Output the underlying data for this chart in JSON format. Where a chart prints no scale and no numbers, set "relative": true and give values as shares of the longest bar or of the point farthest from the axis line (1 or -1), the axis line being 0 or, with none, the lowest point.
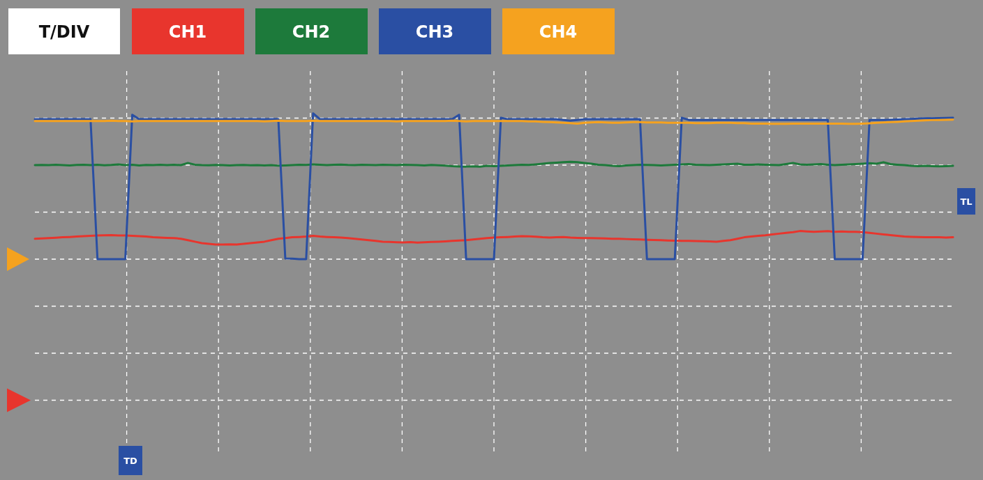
{
  "chart_data": {
    "type": "line",
    "relative": true,
    "grid": true,
    "legend": "top left",
    "annotations": [
      "T/DIV",
      "TL",
      "TD"
    ],
    "categories": [
      null,
      null,
      null,
      null,
      null,
      null,
      null,
      null,
      null,
      null,
      null,
      null,
      null,
      null,
      null,
      null,
      null,
      null,
      null,
      null,
      null,
      null,
      null,
      null,
      null,
      null,
      null,
      null,
      null,
      null,
      null,
      null,
      null,
      null,
      null,
      null,
      null,
      null,
      null,
      null,
      null,
      null,
      null,
      null,
      null,
      null,
      null,
      null,
      null,
      null,
      null,
      null,
      null,
      null,
      null,
      null,
      null,
      null,
      null,
      null,
      null,
      null,
      null,
      null,
      null,
      null,
      null,
      null,
      null,
      null,
      null,
      null,
      null,
      null,
      null,
      null,
      null,
      null,
      null,
      null,
      null,
      null,
      null,
      null,
      null,
      null,
      null,
      null,
      null,
      null,
      null,
      null,
      null,
      null,
      null,
      null,
      null,
      null,
      null,
      null,
      null,
      null,
      null,
      null,
      null,
      null,
      null,
      null,
      null,
      null,
      null,
      null,
      null,
      null,
      null,
      null,
      null,
      null,
      null,
      null,
      null,
      null,
      null,
      null,
      null,
      null,
      null,
      null,
      null,
      null,
      null,
      null,
      null
    ],
    "series": [
      {
        "name": "CH1",
        "color": "#e8352d",
        "values": [
          0.14,
          0.142,
          0.145,
          0.147,
          0.15,
          0.152,
          0.155,
          0.158,
          0.16,
          0.162,
          0.164,
          0.165,
          0.162,
          0.163,
          0.16,
          0.158,
          0.155,
          0.15,
          0.148,
          0.146,
          0.145,
          0.14,
          0.13,
          0.12,
          0.11,
          0.105,
          0.1,
          0.1,
          0.102,
          0.1,
          0.105,
          0.11,
          0.115,
          0.12,
          0.13,
          0.14,
          0.145,
          0.15,
          0.152,
          0.155,
          0.16,
          0.155,
          0.152,
          0.15,
          0.148,
          0.145,
          0.14,
          0.135,
          0.13,
          0.125,
          0.12,
          0.118,
          0.116,
          0.115,
          0.117,
          0.114,
          0.116,
          0.118,
          0.12,
          0.122,
          0.125,
          0.128,
          0.13,
          0.135,
          0.14,
          0.145,
          0.148,
          0.15,
          0.152,
          0.155,
          0.158,
          0.156,
          0.154,
          0.15,
          0.148,
          0.15,
          0.152,
          0.148,
          0.146,
          0.145,
          0.145,
          0.143,
          0.142,
          0.14,
          0.14,
          0.138,
          0.136,
          0.135,
          0.133,
          0.132,
          0.13,
          0.128,
          0.127,
          0.126,
          0.125,
          0.124,
          0.123,
          0.122,
          0.12,
          0.125,
          0.13,
          0.14,
          0.15,
          0.155,
          0.16,
          0.164,
          0.17,
          0.175,
          0.18,
          0.185,
          0.193,
          0.19,
          0.188,
          0.19,
          0.192,
          0.188,
          0.19,
          0.187,
          0.188,
          0.185,
          0.18,
          0.175,
          0.17,
          0.165,
          0.16,
          0.155,
          0.153,
          0.152,
          0.15,
          0.15,
          0.15,
          0.148,
          0.15
        ]
      },
      {
        "name": "CH2",
        "color": "#1d7a3b",
        "values": [
          0.645,
          0.646,
          0.645,
          0.647,
          0.645,
          0.643,
          0.646,
          0.648,
          0.645,
          0.647,
          0.644,
          0.646,
          0.65,
          0.645,
          0.647,
          0.643,
          0.646,
          0.645,
          0.648,
          0.645,
          0.647,
          0.645,
          0.66,
          0.648,
          0.645,
          0.644,
          0.646,
          0.645,
          0.643,
          0.645,
          0.646,
          0.644,
          0.645,
          0.643,
          0.645,
          0.641,
          0.643,
          0.645,
          0.648,
          0.646,
          0.65,
          0.648,
          0.645,
          0.647,
          0.649,
          0.646,
          0.645,
          0.648,
          0.646,
          0.645,
          0.647,
          0.646,
          0.645,
          0.648,
          0.646,
          0.645,
          0.643,
          0.646,
          0.644,
          0.642,
          0.638,
          0.636,
          0.635,
          0.637,
          0.634,
          0.64,
          0.638,
          0.64,
          0.643,
          0.645,
          0.648,
          0.646,
          0.65,
          0.655,
          0.66,
          0.662,
          0.665,
          0.668,
          0.665,
          0.66,
          0.655,
          0.648,
          0.645,
          0.64,
          0.638,
          0.643,
          0.645,
          0.648,
          0.646,
          0.645,
          0.643,
          0.645,
          0.647,
          0.65,
          0.652,
          0.648,
          0.646,
          0.645,
          0.648,
          0.65,
          0.652,
          0.655,
          0.648,
          0.647,
          0.65,
          0.648,
          0.646,
          0.645,
          0.652,
          0.66,
          0.65,
          0.648,
          0.65,
          0.652,
          0.648,
          0.645,
          0.647,
          0.65,
          0.652,
          0.655,
          0.658,
          0.655,
          0.665,
          0.652,
          0.648,
          0.645,
          0.64,
          0.638,
          0.64,
          0.638,
          0.637,
          0.638,
          0.64
        ]
      },
      {
        "name": "CH3",
        "color": "#2a4fa3",
        "values": [
          0.96,
          0.96,
          0.96,
          0.96,
          0.96,
          0.96,
          0.96,
          0.96,
          0.96,
          0,
          0,
          0,
          0,
          0,
          0.99,
          0.96,
          0.96,
          0.96,
          0.96,
          0.96,
          0.96,
          0.96,
          0.96,
          0.96,
          0.96,
          0.96,
          0.96,
          0.96,
          0.96,
          0.96,
          0.96,
          0.96,
          0.96,
          0.96,
          0.96,
          0.96,
          0.005,
          0.003,
          0,
          0,
          1,
          0.96,
          0.96,
          0.96,
          0.96,
          0.96,
          0.96,
          0.96,
          0.96,
          0.96,
          0.96,
          0.96,
          0.96,
          0.96,
          0.96,
          0.96,
          0.96,
          0.96,
          0.96,
          0.96,
          0.96,
          0.99,
          0,
          0,
          0,
          0,
          0,
          0.97,
          0.96,
          0.96,
          0.96,
          0.96,
          0.96,
          0.96,
          0.96,
          0.96,
          0.955,
          0.95,
          0.955,
          0.96,
          0.96,
          0.96,
          0.96,
          0.96,
          0.96,
          0.96,
          0.96,
          0.96,
          0,
          0,
          0,
          0,
          0,
          0.97,
          0.955,
          0.955,
          0.955,
          0.955,
          0.955,
          0.955,
          0.955,
          0.955,
          0.955,
          0.955,
          0.955,
          0.955,
          0.955,
          0.955,
          0.955,
          0.955,
          0.955,
          0.955,
          0.955,
          0.955,
          0.955,
          0,
          0,
          0,
          0,
          0,
          0.955,
          0.955,
          0.955,
          0.956,
          0.958,
          0.96,
          0.962,
          0.964,
          0.966,
          0.967,
          0.968,
          0.969,
          0.97
        ]
      },
      {
        "name": "CH4",
        "color": "#f5a21f",
        "values": [
          0.947,
          0.947,
          0.947,
          0.947,
          0.947,
          0.947,
          0.947,
          0.947,
          0.947,
          0.947,
          0.947,
          0.95,
          0.947,
          0.947,
          0.945,
          0.947,
          0.947,
          0.947,
          0.947,
          0.947,
          0.947,
          0.947,
          0.947,
          0.947,
          0.947,
          0.947,
          0.947,
          0.947,
          0.947,
          0.947,
          0.947,
          0.947,
          0.947,
          0.945,
          0.947,
          0.95,
          0.947,
          0.947,
          0.947,
          0.947,
          0.95,
          0.947,
          0.947,
          0.947,
          0.947,
          0.947,
          0.947,
          0.947,
          0.947,
          0.947,
          0.947,
          0.947,
          0.945,
          0.947,
          0.947,
          0.947,
          0.947,
          0.947,
          0.947,
          0.947,
          0.95,
          0.947,
          0.945,
          0.947,
          0.947,
          0.947,
          0.947,
          0.947,
          0.947,
          0.947,
          0.947,
          0.945,
          0.945,
          0.942,
          0.94,
          0.938,
          0.935,
          0.933,
          0.93,
          0.935,
          0.938,
          0.94,
          0.938,
          0.935,
          0.935,
          0.938,
          0.94,
          0.94,
          0.938,
          0.938,
          0.938,
          0.935,
          0.935,
          0.935,
          0.935,
          0.933,
          0.933,
          0.933,
          0.935,
          0.935,
          0.935,
          0.933,
          0.933,
          0.93,
          0.93,
          0.93,
          0.928,
          0.928,
          0.928,
          0.93,
          0.93,
          0.93,
          0.93,
          0.93,
          0.93,
          0.93,
          0.93,
          0.928,
          0.928,
          0.93,
          0.932,
          0.935,
          0.938,
          0.94,
          0.942,
          0.945,
          0.947,
          0.95,
          0.952,
          0.954,
          0.955,
          0.956,
          0.957
        ]
      }
    ]
  }
}
